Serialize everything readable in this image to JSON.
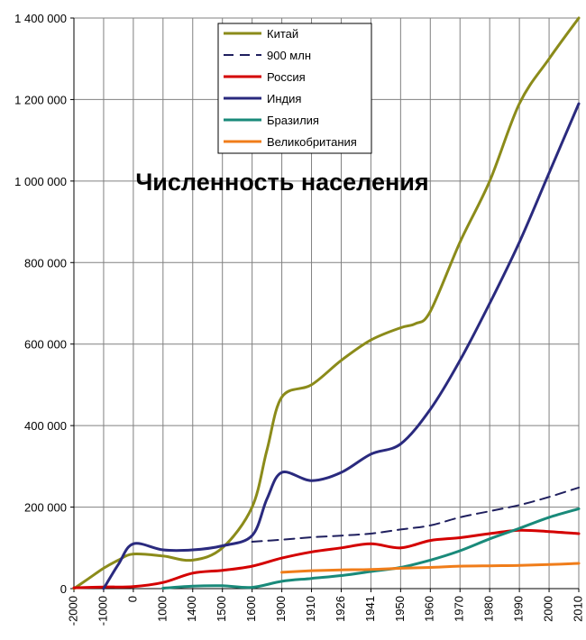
{
  "chart_data": {
    "type": "line",
    "title": "Численность населения",
    "xlabel": "",
    "ylabel": "",
    "categories": [
      "-2000",
      "-1000",
      "0",
      "1000",
      "1400",
      "1500",
      "1600",
      "1900",
      "1910",
      "1926",
      "1941",
      "1950",
      "1960",
      "1970",
      "1980",
      "1990",
      "2000",
      "2010"
    ],
    "ylim": [
      0,
      1400000
    ],
    "yticks": [
      0,
      200000,
      400000,
      600000,
      800000,
      1000000,
      1200000,
      1400000
    ],
    "ytick_labels": [
      "0",
      "200 000",
      "400 000",
      "600 000",
      "800 000",
      "1 000 000",
      "1 200 000",
      "1 400 000"
    ],
    "grid": true,
    "legend_position": "top-center",
    "series": [
      {
        "name": "Китай",
        "color": "#8b8b1a",
        "dash": false,
        "points": [
          [
            0,
            0
          ],
          [
            0.5,
            25000
          ],
          [
            1,
            50000
          ],
          [
            1.5,
            70000
          ],
          [
            2,
            85000
          ],
          [
            3,
            80000
          ],
          [
            4,
            70000
          ],
          [
            5,
            100000
          ],
          [
            6,
            200000
          ],
          [
            6.5,
            340000
          ],
          [
            7,
            470000
          ],
          [
            8,
            500000
          ],
          [
            9,
            560000
          ],
          [
            10,
            610000
          ],
          [
            11,
            640000
          ],
          [
            11.5,
            650000
          ],
          [
            12,
            680000
          ],
          [
            13,
            850000
          ],
          [
            14,
            1000000
          ],
          [
            15,
            1190000
          ],
          [
            16,
            1300000
          ],
          [
            17,
            1400000
          ]
        ]
      },
      {
        "name": "900 млн",
        "color": "#1f1f5e",
        "dash": true,
        "points": [
          [
            6,
            115000
          ],
          [
            7,
            120000
          ],
          [
            8,
            126000
          ],
          [
            9,
            130000
          ],
          [
            10,
            135000
          ],
          [
            11,
            145000
          ],
          [
            12,
            155000
          ],
          [
            13,
            175000
          ],
          [
            14,
            190000
          ],
          [
            15,
            205000
          ],
          [
            16,
            225000
          ],
          [
            17,
            248000
          ]
        ]
      },
      {
        "name": "Россия",
        "color": "#d40000",
        "dash": false,
        "points": [
          [
            0,
            2000
          ],
          [
            1,
            4000
          ],
          [
            2,
            5000
          ],
          [
            3,
            15000
          ],
          [
            4,
            38000
          ],
          [
            5,
            45000
          ],
          [
            6,
            55000
          ],
          [
            7,
            75000
          ],
          [
            8,
            90000
          ],
          [
            9,
            100000
          ],
          [
            10,
            110000
          ],
          [
            11,
            100000
          ],
          [
            12,
            118000
          ],
          [
            13,
            125000
          ],
          [
            14,
            135000
          ],
          [
            15,
            143000
          ],
          [
            16,
            140000
          ],
          [
            17,
            135000
          ]
        ]
      },
      {
        "name": "Индия",
        "color": "#2a2a7e",
        "dash": false,
        "points": [
          [
            1,
            0
          ],
          [
            1.5,
            60000
          ],
          [
            2,
            110000
          ],
          [
            3,
            95000
          ],
          [
            4,
            95000
          ],
          [
            5,
            105000
          ],
          [
            6,
            130000
          ],
          [
            6.5,
            220000
          ],
          [
            7,
            285000
          ],
          [
            8,
            265000
          ],
          [
            9,
            285000
          ],
          [
            10,
            330000
          ],
          [
            11,
            355000
          ],
          [
            12,
            440000
          ],
          [
            13,
            560000
          ],
          [
            14,
            700000
          ],
          [
            15,
            850000
          ],
          [
            16,
            1020000
          ],
          [
            17,
            1190000
          ]
        ]
      },
      {
        "name": "Бразилия",
        "color": "#198a7a",
        "dash": false,
        "points": [
          [
            3,
            1000
          ],
          [
            4,
            6000
          ],
          [
            5,
            7000
          ],
          [
            6,
            3000
          ],
          [
            7,
            18000
          ],
          [
            8,
            25000
          ],
          [
            9,
            32000
          ],
          [
            10,
            42000
          ],
          [
            11,
            52000
          ],
          [
            12,
            70000
          ],
          [
            13,
            93000
          ],
          [
            14,
            122000
          ],
          [
            15,
            148000
          ],
          [
            16,
            175000
          ],
          [
            17,
            196000
          ]
        ]
      },
      {
        "name": "Великобритания",
        "color": "#f07d1a",
        "dash": false,
        "points": [
          [
            7,
            40000
          ],
          [
            8,
            44000
          ],
          [
            9,
            46000
          ],
          [
            10,
            47000
          ],
          [
            11,
            50000
          ],
          [
            12,
            52000
          ],
          [
            13,
            55000
          ],
          [
            14,
            56000
          ],
          [
            15,
            57000
          ],
          [
            16,
            59000
          ],
          [
            17,
            62000
          ]
        ]
      }
    ]
  }
}
